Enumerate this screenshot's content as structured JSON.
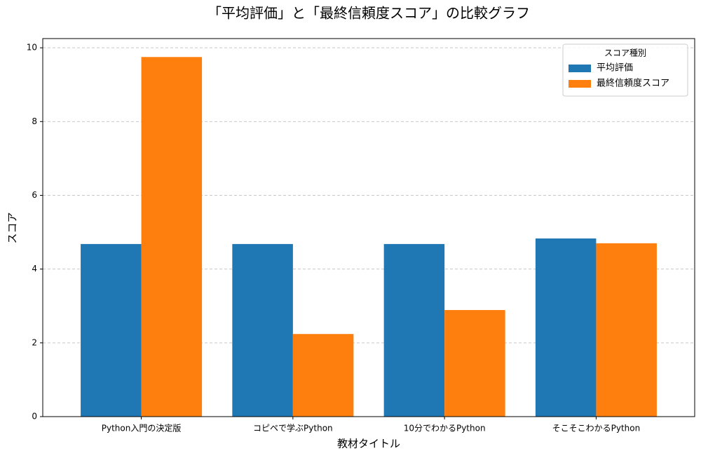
{
  "chart_data": {
    "type": "bar",
    "title": "「平均評価」と「最終信頼度スコア」の比較グラフ",
    "x_label": "教材タイトル",
    "y_label": "スコア",
    "categories": [
      "Python入門の決定版",
      "コピペで学ぶPython",
      "10分でわかるPython",
      "そこそこわかるPython"
    ],
    "series": [
      {
        "name": "平均評価",
        "color": "#1f77b4",
        "values": [
          4.68,
          4.68,
          4.68,
          4.83
        ]
      },
      {
        "name": "最終信頼度スコア",
        "color": "#ff7f0e",
        "values": [
          9.75,
          2.24,
          2.89,
          4.7
        ]
      }
    ],
    "ylim": [
      0,
      10.25
    ],
    "yticks": [
      0,
      2,
      4,
      6,
      8,
      10
    ],
    "grid": true,
    "legend_title": "スコア種別",
    "legend_position": "upper right"
  }
}
